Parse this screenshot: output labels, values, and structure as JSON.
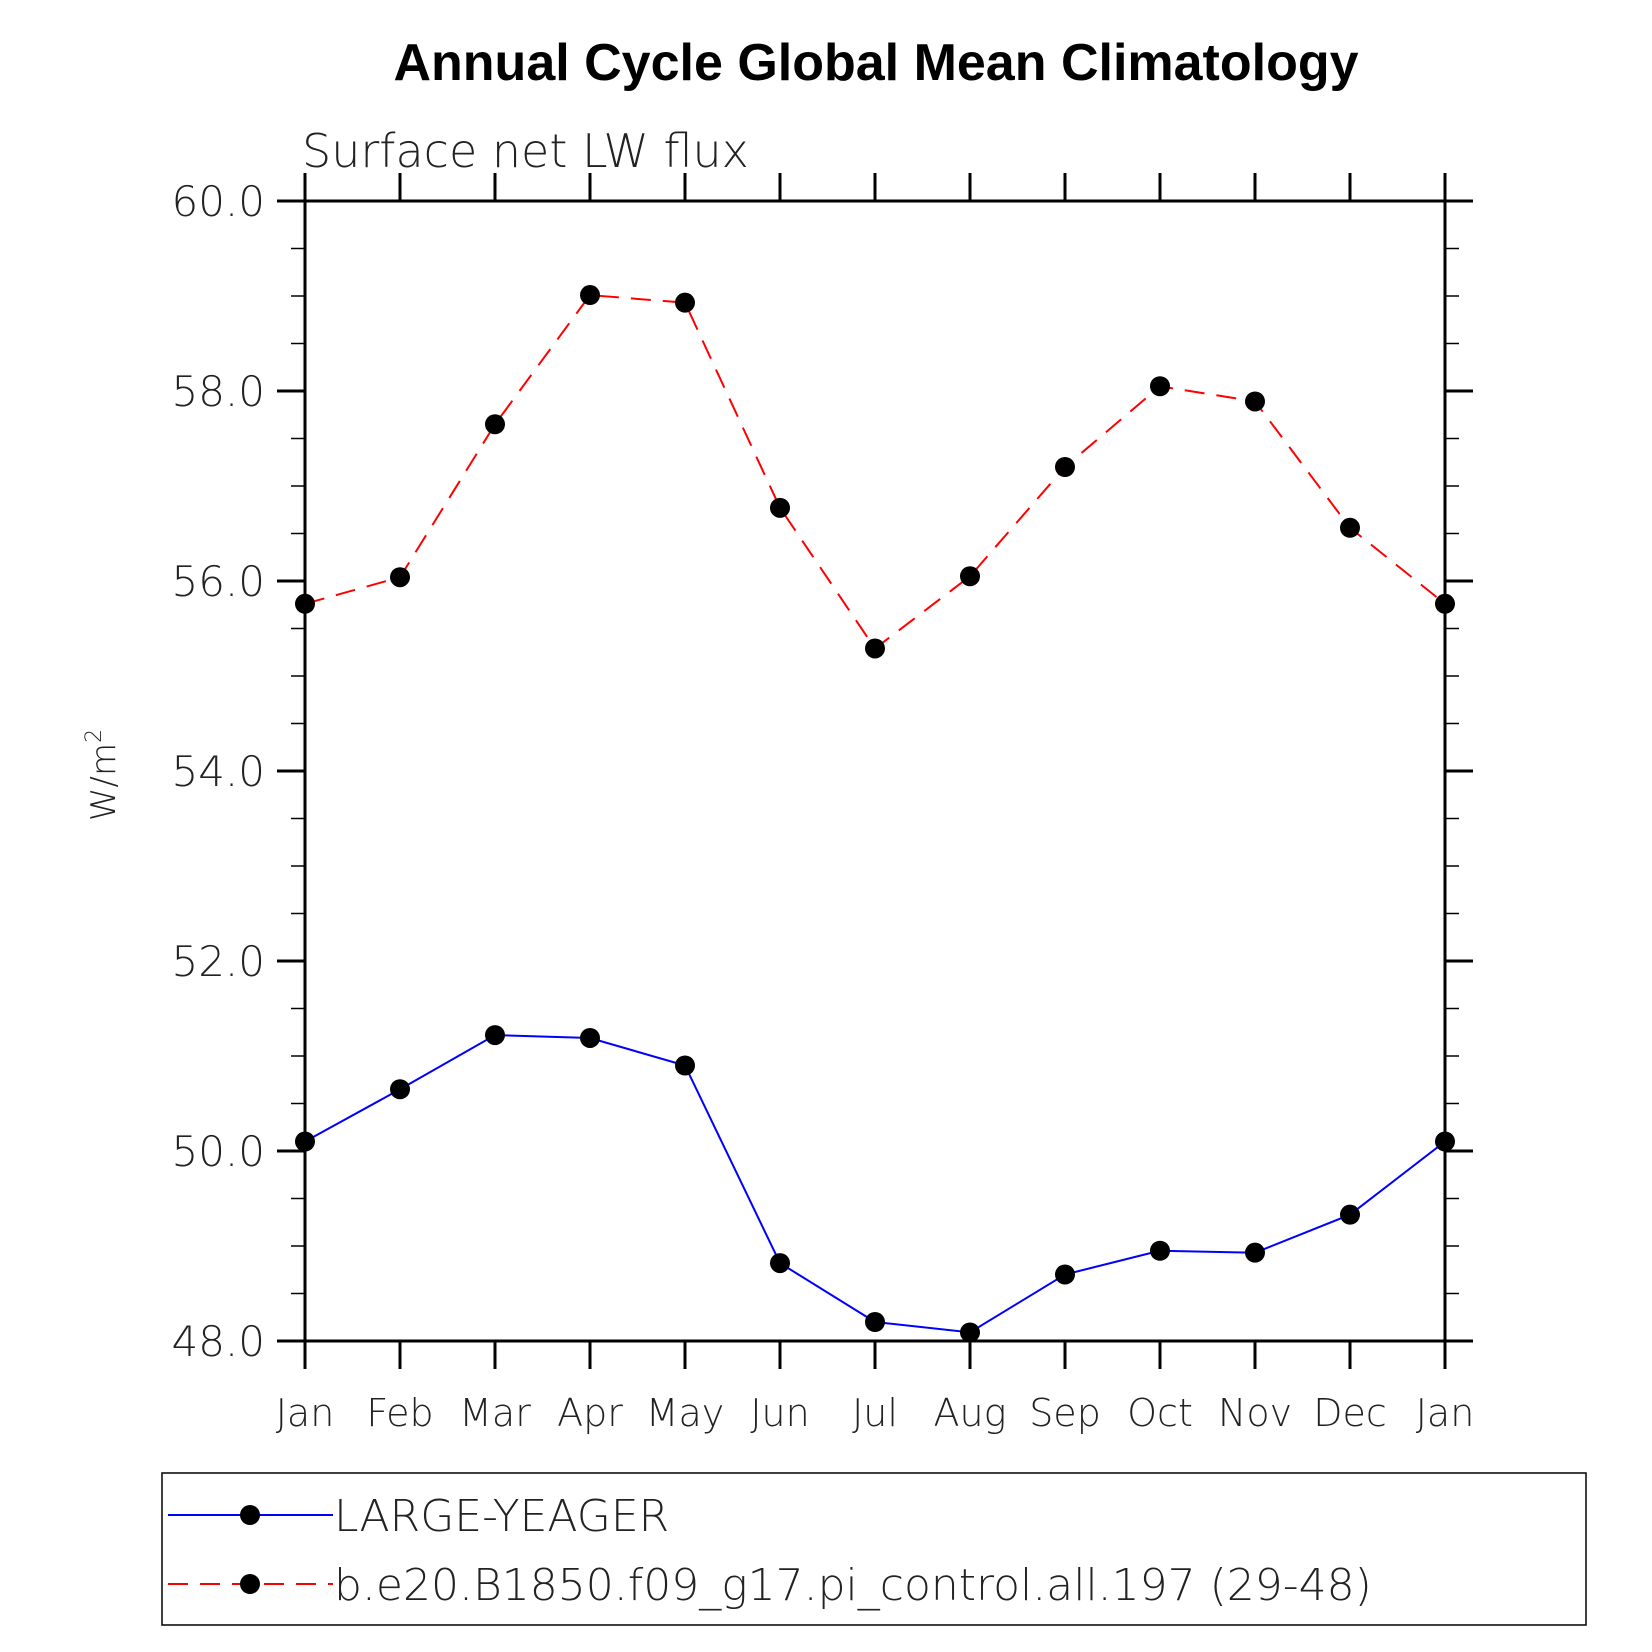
{
  "chart_data": {
    "type": "line",
    "title": "Annual Cycle Global Mean Climatology",
    "subtitle": "Surface net LW flux",
    "ylabel": "W/m",
    "ylabel_superscript": "2",
    "ylim": [
      48,
      60
    ],
    "y_ticks": [
      "48.0",
      "50.0",
      "52.0",
      "54.0",
      "56.0",
      "58.0",
      "60.0"
    ],
    "categories": [
      "Jan",
      "Feb",
      "Mar",
      "Apr",
      "May",
      "Jun",
      "Jul",
      "Aug",
      "Sep",
      "Oct",
      "Nov",
      "Dec",
      "Jan"
    ],
    "legend_placement": "bottom",
    "series": [
      {
        "name": "LARGE-YEAGER",
        "color": "#0000ff",
        "dash": "solid",
        "marker_color": "#000000",
        "values": [
          50.1,
          50.65,
          51.22,
          51.19,
          50.9,
          48.82,
          48.2,
          48.09,
          48.7,
          48.95,
          48.93,
          49.33,
          50.1
        ]
      },
      {
        "name": "b.e20.B1850.f09_g17.pi_control.all.197 (29-48)",
        "color": "#ff0000",
        "dash": "dashed",
        "marker_color": "#000000",
        "values": [
          55.76,
          56.04,
          57.65,
          59.01,
          58.93,
          56.77,
          55.29,
          56.05,
          57.2,
          58.05,
          57.89,
          56.56,
          55.76
        ]
      }
    ]
  }
}
